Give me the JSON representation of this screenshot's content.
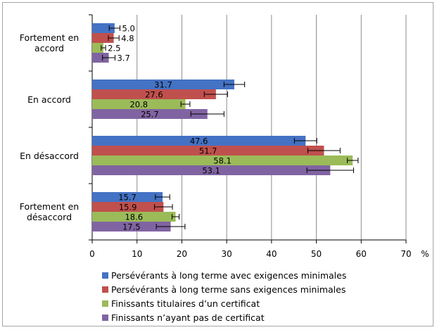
{
  "chart_data": {
    "type": "bar",
    "orientation": "horizontal",
    "categories": [
      "Fortement en\naccord",
      "En accord",
      "En désaccord",
      "Fortement en\ndésaccord"
    ],
    "series": [
      {
        "name": "Persévérants à long terme avec exigences minimales",
        "color": "#4472c4",
        "values": [
          5.0,
          31.7,
          47.6,
          15.7
        ],
        "error": [
          1.2,
          2.3,
          2.5,
          1.6
        ]
      },
      {
        "name": "Persévérants à long terme sans exigences minimales",
        "color": "#c0504d",
        "values": [
          4.8,
          27.6,
          51.7,
          15.9
        ],
        "error": [
          1.2,
          2.6,
          3.6,
          2.0
        ]
      },
      {
        "name": "Finissants titulaires d’un certificat",
        "color": "#9bbb59",
        "values": [
          2.5,
          20.8,
          58.1,
          18.6
        ],
        "error": [
          0.5,
          1.0,
          1.2,
          0.8
        ]
      },
      {
        "name": "Finissants n’ayant pas de certificat",
        "color": "#8064a2",
        "values": [
          3.7,
          25.7,
          53.1,
          17.5
        ],
        "error": [
          1.4,
          3.7,
          5.2,
          3.2
        ]
      }
    ],
    "data_labels": [
      "5.0",
      "4.8",
      "2.5",
      "3.7",
      "31.7",
      "27.6",
      "20.8",
      "25.7",
      "47.6",
      "51.7",
      "58.1",
      "53.1",
      "15.7",
      "15.9",
      "18.6",
      "17.5"
    ],
    "xlim": [
      0,
      70
    ],
    "xticks": [
      "0",
      "10",
      "20",
      "30",
      "40",
      "50",
      "60",
      "70"
    ],
    "unit_label": "%",
    "grid": true,
    "legend_position": "bottom"
  }
}
